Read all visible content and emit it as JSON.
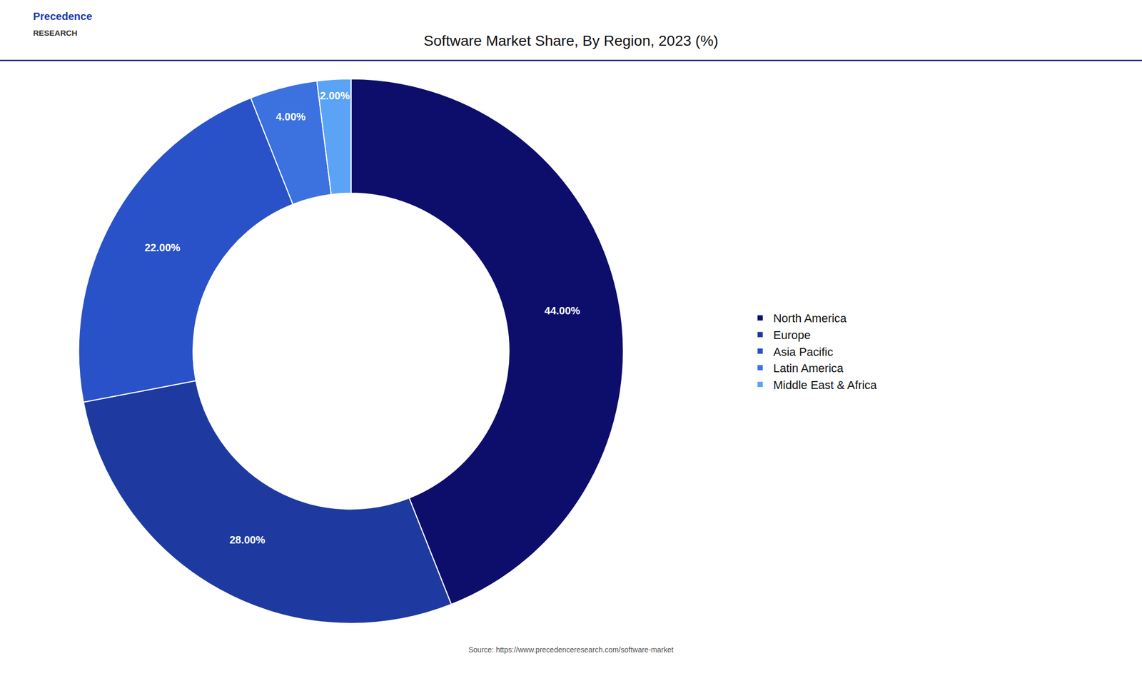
{
  "chart_data": {
    "type": "pie",
    "title": "Software Market Share, By Region, 2023 (%)",
    "categories": [
      "North America",
      "Europe",
      "Asia Pacific",
      "Latin America",
      "Middle East & Africa"
    ],
    "values": [
      44.0,
      28.0,
      22.0,
      4.0,
      2.0
    ],
    "value_labels": [
      "44.00%",
      "28.00%",
      "22.00%",
      "4.00%",
      "2.00%"
    ],
    "colors": [
      "#0d0d6b",
      "#1e3aa0",
      "#2952c8",
      "#3b72e0",
      "#5ba3f5"
    ],
    "data_labels": true,
    "legend": "right",
    "annotations": [
      "Precedence",
      "RESEARCH",
      "Source: https://www.precedenceresearch.com/software-market"
    ]
  }
}
